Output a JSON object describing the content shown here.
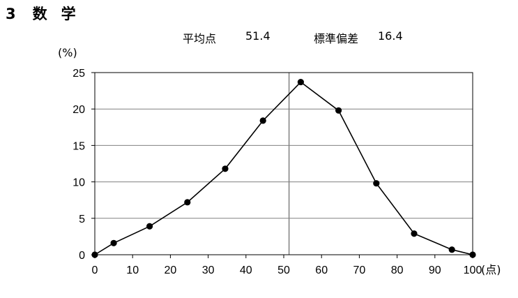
{
  "heading": {
    "number": "3",
    "title_part1": "数",
    "title_part2": "学"
  },
  "stats": {
    "mean_label": "平均点",
    "mean_value": "51.4",
    "sd_label": "標準偏差",
    "sd_value": "16.4"
  },
  "chart_data": {
    "type": "line",
    "ylabel": "(%)",
    "xlabel": "(点)",
    "x": [
      0,
      5,
      14.5,
      24.5,
      34.5,
      44.5,
      54.5,
      64.5,
      74.5,
      84.5,
      94.5,
      100
    ],
    "y": [
      0,
      1.6,
      3.9,
      7.2,
      11.8,
      18.4,
      23.7,
      19.8,
      9.8,
      2.9,
      0.7,
      0
    ],
    "xlim": [
      0,
      100
    ],
    "ylim": [
      0,
      25
    ],
    "xticks": [
      0,
      10,
      20,
      30,
      40,
      50,
      60,
      70,
      80,
      90,
      100
    ],
    "yticks": [
      0,
      5,
      10,
      15,
      20,
      25
    ],
    "mean_line_x": 51.4,
    "grid": "horizontal",
    "line_color": "#000000",
    "marker_color": "#000000",
    "grid_color": "#808080"
  }
}
